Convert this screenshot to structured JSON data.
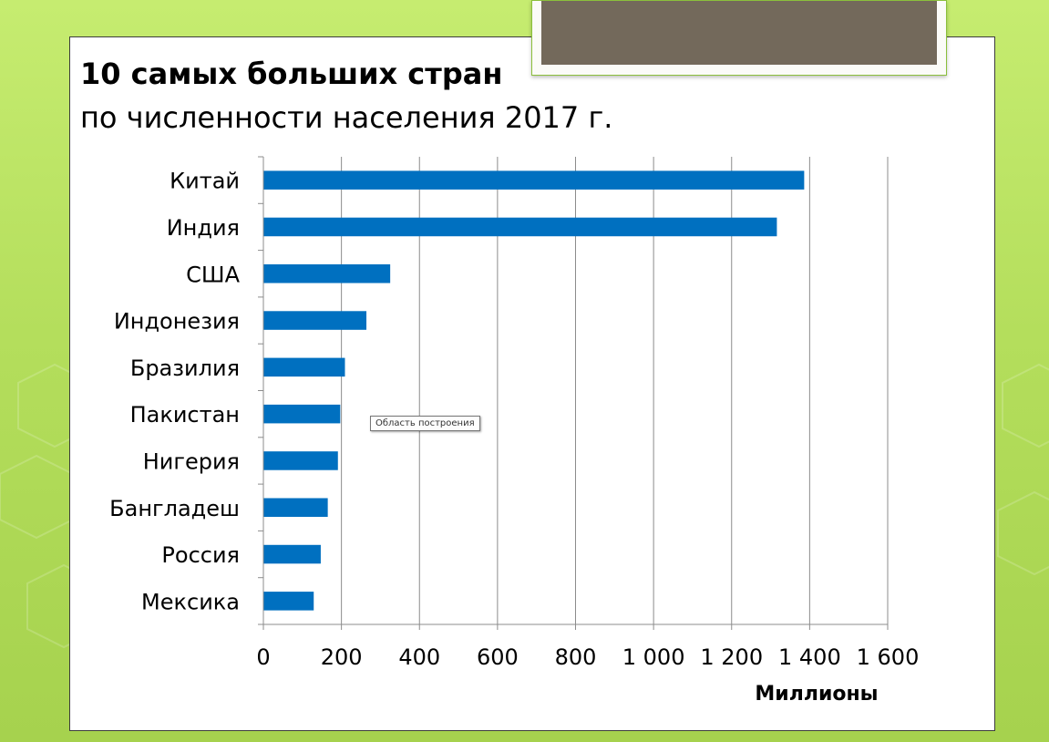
{
  "slide": {
    "title_bold": "10 самых больших стран",
    "title_regular": "по численности населения 2017 г.",
    "tooltip": "Область построения"
  },
  "colors": {
    "bar": "#0070c0",
    "background": "#b4de5c",
    "photo": "#73695b"
  },
  "chart_data": {
    "type": "bar",
    "orientation": "horizontal",
    "title": "",
    "xlabel": "Миллионы",
    "ylabel": "",
    "categories": [
      "Китай",
      "Индия",
      "США",
      "Индонезия",
      "Бразилия",
      "Пакистан",
      "Нигерия",
      "Бангладеш",
      "Россия",
      "Мексика"
    ],
    "values": [
      1386,
      1316,
      325,
      264,
      209,
      197,
      191,
      165,
      147,
      129
    ],
    "xlim": [
      0,
      1600
    ],
    "ticks": [
      0,
      200,
      400,
      600,
      800,
      1000,
      1200,
      1400,
      1600
    ],
    "tick_labels": [
      "0",
      "200",
      "400",
      "600",
      "800",
      "1 000",
      "1 200",
      "1 400",
      "1 600"
    ],
    "grid": "vertical",
    "legend": "none"
  }
}
